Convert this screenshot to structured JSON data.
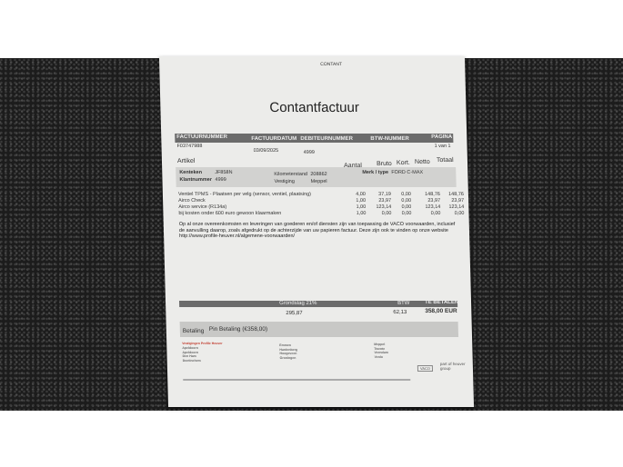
{
  "stamp": "CONTANT",
  "title": "Contantfactuur",
  "header": {
    "labels": [
      "FACTUURNUMMER",
      "FACTUURDATUM",
      "DEBITEURNUMMER",
      "BTW-NUMMER",
      "PAGINA"
    ],
    "values": {
      "factuurnummer": "F03747988",
      "factuurdatum": "03/09/2025",
      "debiteurnummer": "4999",
      "pagina": "1 van 1"
    }
  },
  "columns": [
    "Artikel",
    "Aantal",
    "Bruto",
    "Kort.",
    "Netto",
    "Totaal"
  ],
  "vehicle": {
    "kenteken_label": "Kenteken",
    "kenteken": "JF858N",
    "klantnummer_label": "Klantnummer",
    "klantnummer": "4999",
    "km_label": "Kilometerstand",
    "km": "208862",
    "vestiging_label": "Vestiging",
    "vestiging": "Meppel",
    "merk_label": "Merk / type",
    "merk": "FORD C-MAX"
  },
  "items": [
    {
      "artikel": "Ventiel TPMS - Plaatsen per velg (sensor, ventiel, plaatsing)",
      "aantal": "4,00",
      "bruto": "37,19",
      "kort": "0,00",
      "netto": "148,76",
      "totaal": "148,76"
    },
    {
      "artikel": "Airco Check",
      "aantal": "1,00",
      "bruto": "23,97",
      "kort": "0,00",
      "netto": "23,97",
      "totaal": "23,97"
    },
    {
      "artikel": "Airco service (R134a)",
      "aantal": "1,00",
      "bruto": "123,14",
      "kort": "0,00",
      "netto": "123,14",
      "totaal": "123,14"
    },
    {
      "artikel": "bij kosten onder 600 euro gewoon klaarmaken",
      "aantal": "1,00",
      "bruto": "0,00",
      "kort": "0,00",
      "netto": "0,00",
      "totaal": "0,00"
    }
  ],
  "terms": "Op al onze overeenkomsten en leveringen van goederen en/of diensten zijn van toepassing de VACO voorwaarden, inclusief de aanvulling daarop, zoals afgedrukt op de achterzijde van uw papieren factuur. Deze zijn ook te vinden op onze website http://www.profile-heuver.nl/algemene-voorwaarden/",
  "totals": {
    "grondslag_label": "Grondslag 21%",
    "grondslag": "295,87",
    "btw_label": "BTW",
    "btw": "62,13",
    "te_betalen_label": "TE BETALEN",
    "te_betalen": "358,00 EUR"
  },
  "payment": {
    "label": "Betaling",
    "value": "Pin Betaling (€358,00)"
  },
  "footer": {
    "heading": "Vestigingen Profile Heuver",
    "branches": [
      "Apeldoorn",
      "Apeldoorn",
      "Den Ham",
      "Doetinchem",
      "Emmen",
      "Hardenberg",
      "Hoogeveen",
      "Groningen",
      "Meppel",
      "Twente",
      "Veendam",
      "Venlo"
    ],
    "group": "part of heuver group",
    "vaco": "VACO"
  },
  "brand_color": "#c0392b"
}
